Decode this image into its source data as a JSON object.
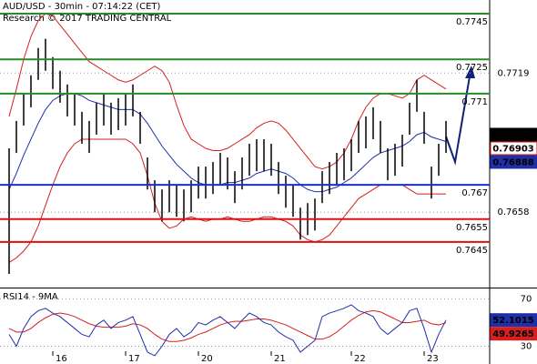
{
  "chart_data": [
    {
      "type": "ohlc",
      "title": "AUD/USD - 30min - 07:14:22 (CET)",
      "subtitle": "Research © 2017 TRADING CENTRAL",
      "bar_color": "#000000",
      "high": [
        0.7686,
        0.7698,
        0.771,
        0.7718,
        0.773,
        0.7734,
        0.7726,
        0.772,
        0.7714,
        0.771,
        0.7702,
        0.7698,
        0.7706,
        0.771,
        0.7706,
        0.7708,
        0.771,
        0.7714,
        0.7702,
        0.7682,
        0.7672,
        0.7668,
        0.7672,
        0.767,
        0.7668,
        0.7672,
        0.7678,
        0.7678,
        0.768,
        0.7684,
        0.7682,
        0.7676,
        0.7682,
        0.7688,
        0.769,
        0.769,
        0.7688,
        0.768,
        0.7674,
        0.767,
        0.766,
        0.7662,
        0.7664,
        0.7676,
        0.768,
        0.7684,
        0.7686,
        0.769,
        0.7698,
        0.77,
        0.7704,
        0.7698,
        0.7686,
        0.7688,
        0.7692,
        0.7706,
        0.7716,
        0.7702,
        0.7678,
        0.7688,
        0.7698
      ],
      "low": [
        0.7631,
        0.7684,
        0.7696,
        0.7704,
        0.7716,
        0.772,
        0.7712,
        0.7706,
        0.77,
        0.7696,
        0.7688,
        0.7684,
        0.7692,
        0.7696,
        0.7692,
        0.7694,
        0.7696,
        0.77,
        0.7688,
        0.7668,
        0.7658,
        0.7654,
        0.7658,
        0.7656,
        0.7654,
        0.7658,
        0.7664,
        0.7664,
        0.7666,
        0.767,
        0.7668,
        0.7662,
        0.7668,
        0.7674,
        0.7676,
        0.7676,
        0.7674,
        0.7666,
        0.766,
        0.7656,
        0.7646,
        0.7648,
        0.765,
        0.7662,
        0.7666,
        0.767,
        0.7672,
        0.7676,
        0.7684,
        0.7686,
        0.769,
        0.7684,
        0.7672,
        0.7674,
        0.7678,
        0.7692,
        0.7702,
        0.7688,
        0.7664,
        0.7674,
        0.7684
      ],
      "ma_color": "#1f2fa8",
      "ma_values": [
        0.7668,
        0.7675,
        0.7683,
        0.769,
        0.7697,
        0.7703,
        0.7707,
        0.7709,
        0.771,
        0.771,
        0.7709,
        0.7707,
        0.7706,
        0.7705,
        0.7704,
        0.7703,
        0.7703,
        0.7703,
        0.7701,
        0.7697,
        0.7692,
        0.7687,
        0.7683,
        0.7679,
        0.7676,
        0.7673,
        0.7671,
        0.767,
        0.767,
        0.767,
        0.7671,
        0.7671,
        0.7672,
        0.7673,
        0.7675,
        0.7676,
        0.7677,
        0.7676,
        0.7675,
        0.7673,
        0.767,
        0.7668,
        0.7667,
        0.7667,
        0.7668,
        0.7669,
        0.7671,
        0.7673,
        0.7676,
        0.7679,
        0.7682,
        0.7684,
        0.7685,
        0.7686,
        0.7687,
        0.7689,
        0.7692,
        0.7693,
        0.7691,
        0.769,
        0.7689
      ],
      "band_color": "#d42020",
      "band_upper": [
        0.77,
        0.7712,
        0.7725,
        0.7735,
        0.7742,
        0.7745,
        0.7744,
        0.774,
        0.7736,
        0.7732,
        0.7728,
        0.7724,
        0.7722,
        0.772,
        0.7718,
        0.7716,
        0.7715,
        0.7716,
        0.7718,
        0.772,
        0.7722,
        0.772,
        0.7715,
        0.7705,
        0.7696,
        0.769,
        0.7688,
        0.7686,
        0.7685,
        0.7685,
        0.7686,
        0.7688,
        0.769,
        0.7692,
        0.7695,
        0.7697,
        0.7698,
        0.7697,
        0.7694,
        0.769,
        0.7686,
        0.7682,
        0.7678,
        0.7677,
        0.7678,
        0.768,
        0.7684,
        0.769,
        0.7698,
        0.7704,
        0.7708,
        0.771,
        0.771,
        0.7709,
        0.7708,
        0.771,
        0.7716,
        0.7718,
        0.7716,
        0.7714,
        0.7712
      ],
      "band_lower": [
        0.7636,
        0.7638,
        0.7641,
        0.7645,
        0.7652,
        0.7661,
        0.767,
        0.7678,
        0.7684,
        0.7688,
        0.769,
        0.769,
        0.769,
        0.769,
        0.769,
        0.769,
        0.769,
        0.7688,
        0.7684,
        0.7674,
        0.7662,
        0.7654,
        0.7651,
        0.7652,
        0.7655,
        0.7656,
        0.7655,
        0.7654,
        0.7655,
        0.7655,
        0.7656,
        0.7655,
        0.7654,
        0.7654,
        0.7655,
        0.7656,
        0.7656,
        0.7655,
        0.7654,
        0.7652,
        0.7648,
        0.7646,
        0.7645,
        0.7646,
        0.7648,
        0.7652,
        0.7656,
        0.766,
        0.7664,
        0.7666,
        0.7668,
        0.767,
        0.767,
        0.767,
        0.767,
        0.7668,
        0.7666,
        0.7666,
        0.7666,
        0.7666,
        0.7666
      ],
      "levels": [
        {
          "value": 0.7745,
          "color": "#2a8a2a"
        },
        {
          "value": 0.7725,
          "color": "#2a8a2a"
        },
        {
          "value": 0.771,
          "color": "#2a8a2a"
        },
        {
          "value": 0.767,
          "color": "#1a2fd0"
        },
        {
          "value": 0.7655,
          "color": "#e01010"
        },
        {
          "value": 0.7645,
          "color": "#e01010"
        }
      ],
      "price_markers": [
        {
          "value": 0.7692,
          "color": "#000000",
          "filled": true
        },
        {
          "value": 0.76903,
          "color": "#e01010",
          "filled": false
        },
        {
          "value": 0.76888,
          "color": "#1f2fa8",
          "filled": true
        }
      ],
      "ylim": [
        0.7625,
        0.7751
      ],
      "yticks": [
        0.7719,
        0.7658
      ],
      "grid": true
    },
    {
      "type": "line",
      "title": "RSI14 - 9MA",
      "categories": [
        null,
        null,
        null,
        null,
        null,
        null,
        "16",
        null,
        null,
        null,
        null,
        null,
        null,
        null,
        null,
        null,
        "17",
        null,
        null,
        null,
        null,
        null,
        null,
        null,
        null,
        null,
        "20",
        null,
        null,
        null,
        null,
        null,
        null,
        null,
        null,
        null,
        "21",
        null,
        null,
        null,
        null,
        null,
        null,
        null,
        null,
        null,
        null,
        "22",
        null,
        null,
        null,
        null,
        null,
        null,
        null,
        null,
        null,
        "23",
        null,
        null,
        null
      ],
      "series": [
        {
          "color": "#1f2fa8",
          "values": [
            40,
            30,
            45,
            55,
            60,
            62,
            58,
            55,
            50,
            45,
            40,
            38,
            48,
            52,
            45,
            50,
            52,
            55,
            40,
            25,
            22,
            30,
            40,
            45,
            38,
            42,
            50,
            48,
            52,
            55,
            50,
            45,
            52,
            58,
            55,
            50,
            48,
            42,
            38,
            35,
            25,
            30,
            35,
            55,
            58,
            60,
            62,
            65,
            60,
            58,
            55,
            45,
            40,
            45,
            50,
            60,
            62,
            45,
            25,
            40,
            52.1015
          ]
        },
        {
          "color": "#d42020",
          "values": [
            45,
            42,
            42,
            45,
            50,
            54,
            57,
            58,
            57,
            55,
            52,
            49,
            47,
            46,
            46,
            46,
            47,
            49,
            48,
            45,
            40,
            36,
            34,
            34,
            35,
            37,
            40,
            42,
            45,
            48,
            50,
            51,
            51,
            52,
            53,
            53,
            52,
            50,
            48,
            45,
            42,
            39,
            36,
            36,
            38,
            42,
            47,
            52,
            56,
            59,
            60,
            59,
            56,
            53,
            50,
            50,
            51,
            52,
            49,
            48,
            49.9265
          ]
        }
      ],
      "ylim": [
        15,
        78
      ],
      "yticks": [
        70,
        30
      ],
      "grid": true
    }
  ]
}
